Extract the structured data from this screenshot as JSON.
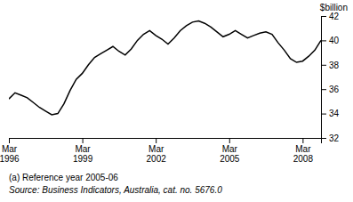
{
  "chart_data": {
    "type": "line",
    "ylabel": "$billion",
    "annotations": [
      "(a) Reference year 2005-06",
      "Source: Business Indicators, Australia, cat. no. 5676.0"
    ],
    "categories": [
      "Mar\n1996",
      null,
      null,
      null,
      null,
      null,
      null,
      null,
      null,
      null,
      null,
      null,
      "Mar\n1999",
      null,
      null,
      null,
      null,
      null,
      null,
      null,
      null,
      null,
      null,
      null,
      "Mar\n2002",
      null,
      null,
      null,
      null,
      null,
      null,
      null,
      null,
      null,
      null,
      null,
      "Mar\n2005",
      null,
      null,
      null,
      null,
      null,
      null,
      null,
      null,
      null,
      null,
      null,
      "Mar\n2008",
      null,
      null,
      null
    ],
    "values": [
      35.2,
      35.7,
      35.5,
      35.3,
      34.9,
      34.5,
      34.2,
      33.9,
      34.0,
      34.8,
      35.9,
      36.8,
      37.3,
      38.0,
      38.6,
      38.9,
      39.2,
      39.5,
      39.1,
      38.8,
      39.3,
      40.0,
      40.5,
      40.8,
      40.4,
      40.1,
      39.7,
      40.2,
      40.8,
      41.2,
      41.5,
      41.6,
      41.4,
      41.1,
      40.7,
      40.3,
      40.5,
      40.8,
      40.5,
      40.2,
      40.4,
      40.6,
      40.7,
      40.5,
      39.8,
      39.2,
      38.5,
      38.2,
      38.3,
      38.7,
      39.2,
      40.0
    ],
    "color": "#000000",
    "ylim": [
      32,
      42
    ],
    "yticks": [
      32,
      34,
      36,
      38,
      40,
      42
    ],
    "grid": false
  }
}
